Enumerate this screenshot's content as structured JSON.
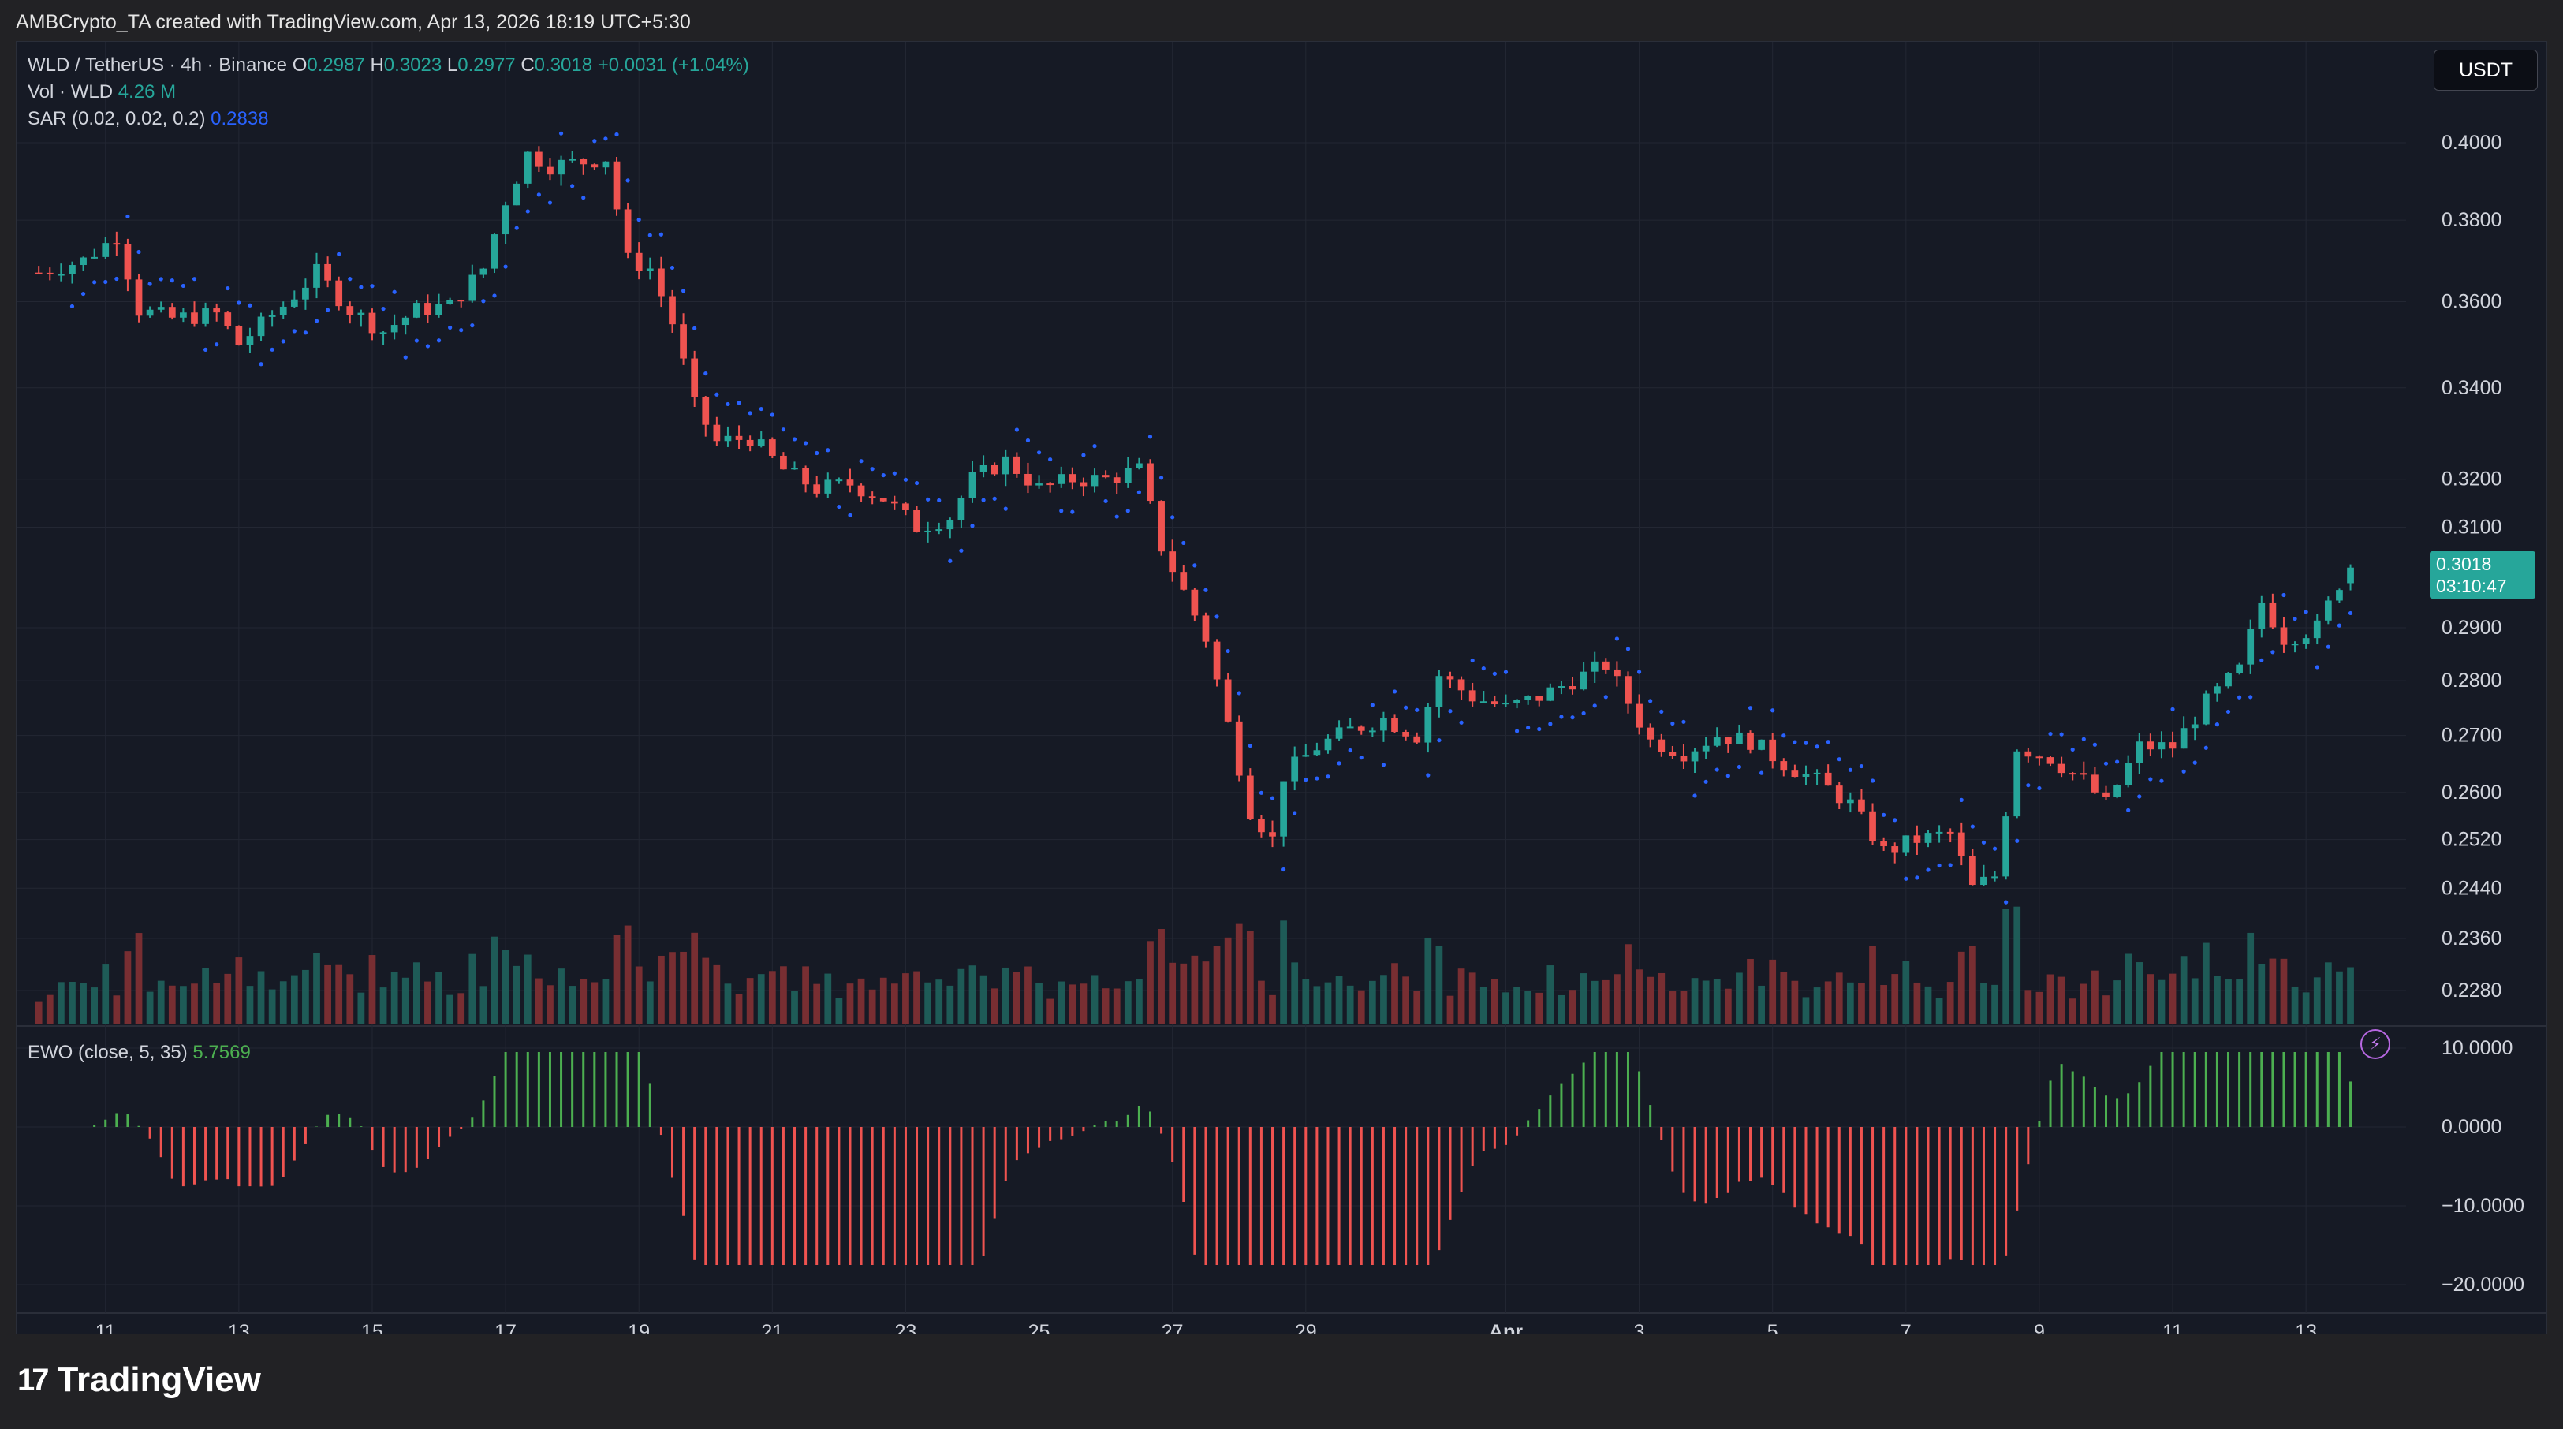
{
  "header": {
    "text": "AMBCrypto_TA created with TradingView.com, Apr 13, 2026 18:19 UTC+5:30"
  },
  "toolbar": {
    "currency_button": "USDT"
  },
  "legend": {
    "symbol": "WLD / TetherUS · 4h · Binance",
    "o_label": "O",
    "o_value": "0.2987",
    "h_label": "H",
    "h_value": "0.3023",
    "l_label": "L",
    "l_value": "0.2977",
    "c_label": "C",
    "c_value": "0.3018",
    "change": "+0.0031 (+1.04%)",
    "vol_label": "Vol · WLD",
    "vol_value": "4.26 M",
    "sar_label": "SAR (0.02, 0.02, 0.2)",
    "sar_value": "0.2838",
    "ewo_label": "EWO (close, 5, 35)",
    "ewo_value": "5.7569"
  },
  "last_price": {
    "price": "0.3018",
    "countdown": "03:10:47"
  },
  "footer": {
    "brand": "TradingView"
  },
  "colors": {
    "up": "#26a69a",
    "down": "#ef5350",
    "sar": "#2962ff",
    "ewo_up": "#4caf50",
    "ewo_down": "#ef5350",
    "background": "#161a25",
    "grid": "#232733"
  },
  "icons": {
    "bolt": "lightning-icon"
  },
  "chart_data": {
    "type": "candlestick",
    "symbol": "WLD/USDT",
    "interval": "4h",
    "price_axis_ticks": [
      "0.4000",
      "0.3800",
      "0.3600",
      "0.3400",
      "0.3200",
      "0.3100",
      "0.2900",
      "0.2800",
      "0.2700",
      "0.2600",
      "0.2520",
      "0.2440",
      "0.2360",
      "0.2280"
    ],
    "ewo_axis_ticks": [
      "10.0000",
      "0.0000",
      "−10.0000",
      "−20.0000"
    ],
    "x_tick_labels": [
      "11",
      "13",
      "15",
      "17",
      "19",
      "21",
      "23",
      "25",
      "27",
      "29",
      "Apr",
      "3",
      "5",
      "7",
      "9",
      "11",
      "13"
    ],
    "close_path": [
      [
        "Mar 10 00:00",
        0.367
      ],
      [
        "Mar 10 16:00",
        0.37
      ],
      [
        "Mar 11 04:00",
        0.376
      ],
      [
        "Mar 11 12:00",
        0.358
      ],
      [
        "Mar 12 00:00",
        0.356
      ],
      [
        "Mar 12 16:00",
        0.357
      ],
      [
        "Mar 13 00:00",
        0.35
      ],
      [
        "Mar 13 16:00",
        0.359
      ],
      [
        "Mar 14 04:00",
        0.367
      ],
      [
        "Mar 14 16:00",
        0.358
      ],
      [
        "Mar 15 04:00",
        0.353
      ],
      [
        "Mar 15 16:00",
        0.358
      ],
      [
        "Mar 16 04:00",
        0.359
      ],
      [
        "Mar 16 16:00",
        0.368
      ],
      [
        "Mar 17 00:00",
        0.385
      ],
      [
        "Mar 17 08:00",
        0.397
      ],
      [
        "Mar 17 16:00",
        0.394
      ],
      [
        "Mar 18 04:00",
        0.395
      ],
      [
        "Mar 18 12:00",
        0.396
      ],
      [
        "Mar 18 20:00",
        0.37
      ],
      [
        "Mar 19 04:00",
        0.368
      ],
      [
        "Mar 19 12:00",
        0.355
      ],
      [
        "Mar 19 20:00",
        0.336
      ],
      [
        "Mar 20 04:00",
        0.328
      ],
      [
        "Mar 20 16:00",
        0.329
      ],
      [
        "Mar 21 04:00",
        0.322
      ],
      [
        "Mar 21 16:00",
        0.318
      ],
      [
        "Mar 22 04:00",
        0.319
      ],
      [
        "Mar 22 16:00",
        0.316
      ],
      [
        "Mar 23 04:00",
        0.31
      ],
      [
        "Mar 23 16:00",
        0.312
      ],
      [
        "Mar 24 00:00",
        0.32
      ],
      [
        "Mar 24 12:00",
        0.324
      ],
      [
        "Mar 25 00:00",
        0.318
      ],
      [
        "Mar 25 12:00",
        0.32
      ],
      [
        "Mar 26 00:00",
        0.32
      ],
      [
        "Mar 26 12:00",
        0.322
      ],
      [
        "Mar 26 20:00",
        0.306
      ],
      [
        "Mar 27 04:00",
        0.297
      ],
      [
        "Mar 27 12:00",
        0.288
      ],
      [
        "Mar 27 20:00",
        0.272
      ],
      [
        "Mar 28 04:00",
        0.257
      ],
      [
        "Mar 28 12:00",
        0.252
      ],
      [
        "Mar 28 16:00",
        0.263
      ],
      [
        "Mar 29 04:00",
        0.268
      ],
      [
        "Mar 29 16:00",
        0.271
      ],
      [
        "Mar 30 04:00",
        0.273
      ],
      [
        "Mar 30 16:00",
        0.27
      ],
      [
        "Mar 31 00:00",
        0.281
      ],
      [
        "Mar 31 12:00",
        0.277
      ],
      [
        "Apr 1 00:00",
        0.275
      ],
      [
        "Apr 1 12:00",
        0.277
      ],
      [
        "Apr 2 00:00",
        0.28
      ],
      [
        "Apr 2 12:00",
        0.283
      ],
      [
        "Apr 2 20:00",
        0.276
      ],
      [
        "Apr 3 04:00",
        0.269
      ],
      [
        "Apr 3 16:00",
        0.267
      ],
      [
        "Apr 4 04:00",
        0.27
      ],
      [
        "Apr 4 16:00",
        0.269
      ],
      [
        "Apr 5 04:00",
        0.265
      ],
      [
        "Apr 5 16:00",
        0.262
      ],
      [
        "Apr 6 04:00",
        0.258
      ],
      [
        "Apr 6 16:00",
        0.25
      ],
      [
        "Apr 7 04:00",
        0.252
      ],
      [
        "Apr 7 16:00",
        0.253
      ],
      [
        "Apr 8 00:00",
        0.244
      ],
      [
        "Apr 8 08:00",
        0.246
      ],
      [
        "Apr 8 16:00",
        0.268
      ],
      [
        "Apr 9 04:00",
        0.266
      ],
      [
        "Apr 9 16:00",
        0.262
      ],
      [
        "Apr 10 00:00",
        0.258
      ],
      [
        "Apr 10 12:00",
        0.268
      ],
      [
        "Apr 11 00:00",
        0.268
      ],
      [
        "Apr 11 12:00",
        0.276
      ],
      [
        "Apr 12 00:00",
        0.282
      ],
      [
        "Apr 12 08:00",
        0.295
      ],
      [
        "Apr 12 16:00",
        0.288
      ],
      [
        "Apr 13 04:00",
        0.29
      ],
      [
        "Apr 13 12:00",
        0.2987
      ],
      [
        "Apr 13 16:00",
        0.3018
      ]
    ],
    "last_candle": {
      "open": 0.2987,
      "high": 0.3023,
      "low": 0.2977,
      "close": 0.3018
    },
    "sar_last": 0.2838,
    "ewo_last": 5.7569,
    "volume_last": "4.26 M"
  }
}
